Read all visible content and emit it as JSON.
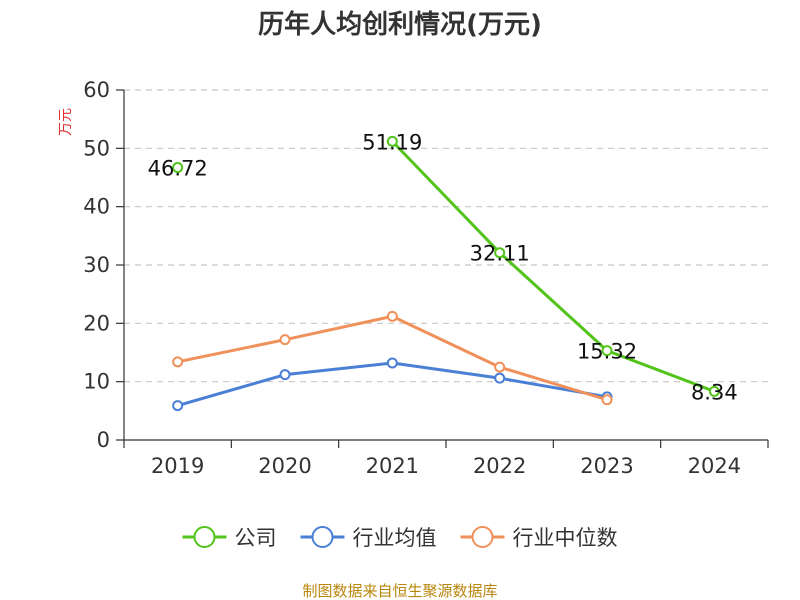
{
  "chart_data": {
    "type": "line",
    "title": "历年人均创利情况(万元)",
    "ylabel": "万元",
    "xlabel": "",
    "categories": [
      "2019",
      "2020",
      "2021",
      "2022",
      "2023",
      "2024"
    ],
    "ylim": [
      0,
      60
    ],
    "yticks": [
      0,
      10,
      20,
      30,
      40,
      50,
      60
    ],
    "grid": true,
    "legend_position": "bottom",
    "series": [
      {
        "name": "公司",
        "color": "#52c41a",
        "values": [
          46.72,
          null,
          51.19,
          32.11,
          15.32,
          8.34
        ],
        "labels": [
          "46.72",
          "",
          "51.19",
          "32.11",
          "15.32",
          "8.34"
        ]
      },
      {
        "name": "行业均值",
        "color": "#4a7fd6",
        "values": [
          5.9,
          11.2,
          13.2,
          10.6,
          7.4,
          null
        ]
      },
      {
        "name": "行业中位数",
        "color": "#f0905a",
        "values": [
          13.4,
          17.2,
          21.2,
          12.5,
          6.9,
          null
        ]
      }
    ],
    "source": "制图数据来自恒生聚源数据库"
  }
}
